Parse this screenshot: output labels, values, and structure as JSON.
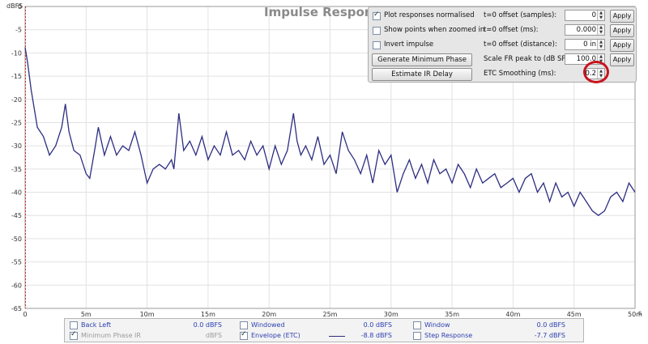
{
  "chart_data": {
    "type": "line",
    "title": "Impulse Response",
    "ylabel": "dBFS",
    "xunit": "s",
    "ylim": [
      -65,
      0
    ],
    "xlim": [
      0,
      50
    ],
    "grid": true,
    "yticks": [
      "0",
      "-5",
      "-10",
      "-15",
      "-20",
      "-25",
      "-30",
      "-35",
      "-40",
      "-45",
      "-50",
      "-55",
      "-60",
      "-65"
    ],
    "xticks": [
      "0",
      "5m",
      "10m",
      "15m",
      "20m",
      "25m",
      "30m",
      "35m",
      "40m",
      "45m",
      "50m"
    ],
    "series": [
      {
        "name": "Envelope (ETC)",
        "color": "#2d2d82",
        "x": [
          0.0,
          0.2,
          0.5,
          1.0,
          1.5,
          2.0,
          2.5,
          3.0,
          3.3,
          3.6,
          4.0,
          4.5,
          5.0,
          5.3,
          5.7,
          6.0,
          6.5,
          7.0,
          7.5,
          8.0,
          8.5,
          9.0,
          9.5,
          10.0,
          10.5,
          11.0,
          11.5,
          12.0,
          12.2,
          12.6,
          13.0,
          13.5,
          14.0,
          14.5,
          15.0,
          15.5,
          16.0,
          16.5,
          17.0,
          17.5,
          18.0,
          18.5,
          19.0,
          19.5,
          20.0,
          20.5,
          21.0,
          21.5,
          22.0,
          22.3,
          22.6,
          23.0,
          23.5,
          24.0,
          24.5,
          25.0,
          25.5,
          26.0,
          26.5,
          27.0,
          27.5,
          28.0,
          28.5,
          29.0,
          29.5,
          30.0,
          30.5,
          31.0,
          31.5,
          32.0,
          32.5,
          33.0,
          33.5,
          34.0,
          34.5,
          35.0,
          35.5,
          36.0,
          36.5,
          37.0,
          37.5,
          38.0,
          38.5,
          39.0,
          39.5,
          40.0,
          40.5,
          41.0,
          41.5,
          42.0,
          42.5,
          43.0,
          43.5,
          44.0,
          44.5,
          45.0,
          45.5,
          46.0,
          46.5,
          47.0,
          47.5,
          48.0,
          48.5,
          49.0,
          49.5,
          50.0
        ],
        "y": [
          -8.8,
          -12,
          -18,
          -26,
          -28,
          -32,
          -30,
          -26,
          -21,
          -27,
          -31,
          -32,
          -36,
          -37,
          -31,
          -26,
          -32,
          -28,
          -32,
          -30,
          -31,
          -27,
          -32,
          -38,
          -35,
          -34,
          -35,
          -33,
          -35,
          -23,
          -31,
          -29,
          -32,
          -28,
          -33,
          -30,
          -32,
          -27,
          -32,
          -31,
          -33,
          -29,
          -32,
          -30,
          -35,
          -30,
          -34,
          -31,
          -23,
          -29,
          -32,
          -30,
          -33,
          -28,
          -34,
          -32,
          -36,
          -27,
          -31,
          -33,
          -36,
          -32,
          -38,
          -31,
          -34,
          -32,
          -40,
          -36,
          -33,
          -37,
          -34,
          -38,
          -33,
          -36,
          -35,
          -38,
          -34,
          -36,
          -39,
          -35,
          -38,
          -37,
          -36,
          -39,
          -38,
          -37,
          -40,
          -37,
          -36,
          -40,
          -38,
          -42,
          -38,
          -41,
          -40,
          -43,
          -40,
          -42,
          -44,
          -45,
          -44,
          -41,
          -40,
          -42,
          -38,
          -40
        ]
      }
    ]
  },
  "controls": {
    "plot_normalised": {
      "label": "Plot responses normalised",
      "checked": true
    },
    "show_points": {
      "label": "Show points when zoomed in",
      "checked": false
    },
    "invert": {
      "label": "Invert impulse",
      "checked": false
    },
    "gen_min_phase": "Generate Minimum Phase",
    "estimate_delay": "Estimate IR Delay",
    "offset_samples": {
      "label": "t=0 offset (samples):",
      "value": "0",
      "apply": "Apply"
    },
    "offset_ms": {
      "label": "t=0 offset (ms):",
      "value": "0.000",
      "apply": "Apply"
    },
    "offset_distance": {
      "label": "t=0 offset (distance):",
      "value": "0 in",
      "apply": "Apply"
    },
    "scale_fr": {
      "label": "Scale FR peak to (dB SPL):",
      "value": "100.0",
      "apply": "Apply"
    },
    "etc_smoothing": {
      "label": "ETC Smoothing (ms):",
      "value": "0.2"
    }
  },
  "legend": {
    "back_left": {
      "name": "Back Left",
      "value": "0.0 dBFS"
    },
    "windowed": {
      "name": "Windowed",
      "value": "0.0 dBFS"
    },
    "window": {
      "name": "Window",
      "value": "0.0 dBFS"
    },
    "min_phase": {
      "name": "Minimum Phase IR",
      "value": "dBFS"
    },
    "envelope": {
      "name": "Envelope (ETC)",
      "value": "-8.8 dBFS"
    },
    "step": {
      "name": "Step Response",
      "value": "-7.7 dBFS"
    }
  },
  "colors": {
    "series": "#2d2d82",
    "highlight": "#c8141e",
    "grid": "#e2e2e2"
  }
}
